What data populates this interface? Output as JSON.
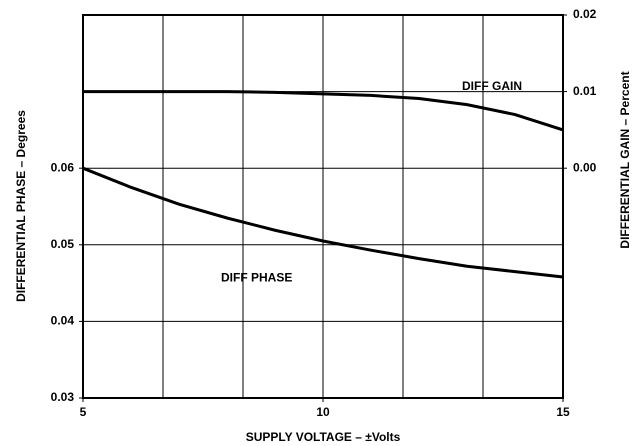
{
  "chart_data": {
    "type": "line",
    "xlabel": "SUPPLY VOLTAGE – ±Volts",
    "ylabel": "DIFFERENTIAL PHASE – Degrees",
    "y2label": "DIFFERENTIAL GAIN – Percent",
    "x": [
      5,
      6,
      7,
      8,
      9,
      10,
      11,
      12,
      13,
      14,
      15
    ],
    "series": [
      {
        "name": "DIFF GAIN",
        "color": "#000000",
        "axis": "y2",
        "values": [
          0.01,
          0.01,
          0.01,
          0.01,
          0.0099,
          0.0097,
          0.0095,
          0.0091,
          0.0083,
          0.007,
          0.005
        ]
      },
      {
        "name": "DIFF PHASE",
        "color": "#000000",
        "values": [
          0.06,
          0.0575,
          0.0553,
          0.0535,
          0.0519,
          0.0505,
          0.0493,
          0.0482,
          0.0472,
          0.0465,
          0.0458
        ]
      }
    ],
    "xlim": [
      5,
      15
    ],
    "xticks": [
      5,
      10,
      15
    ],
    "ylim": [
      0.03,
      0.08
    ],
    "yticks": [
      0.03,
      0.04,
      0.05,
      0.06
    ],
    "y2lim": [
      -0.03,
      0.02
    ],
    "y2ticks": [
      {
        "value": 0,
        "label": "0.00"
      },
      0.01,
      0.02
    ],
    "grid": true,
    "x_grid_divisions": 6,
    "y_grid_divisions": 5
  }
}
